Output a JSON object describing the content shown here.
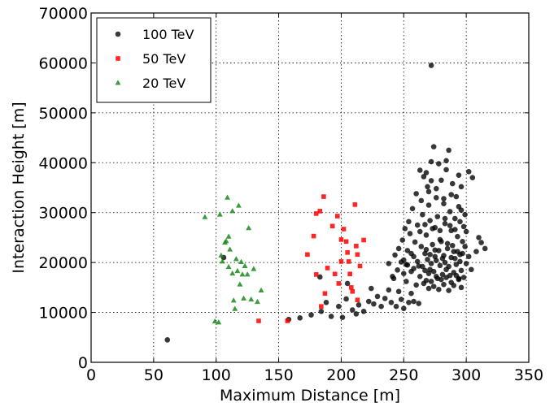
{
  "chart_data": {
    "type": "scatter",
    "title": "",
    "xlabel": "Maximum Distance [m]",
    "ylabel": "Interaction Height [m]",
    "xlim": [
      0,
      350
    ],
    "ylim": [
      0,
      70000
    ],
    "xticks": [
      "0",
      "50",
      "100",
      "150",
      "200",
      "250",
      "300",
      "350"
    ],
    "yticks": [
      "0",
      "10000",
      "20000",
      "30000",
      "40000",
      "50000",
      "60000",
      "70000"
    ],
    "grid": true,
    "legend_position": "top-left",
    "series": [
      {
        "name": "100 TeV",
        "marker": "circle",
        "color": "#000000",
        "points": [
          [
            61,
            4500
          ],
          [
            106,
            21000
          ],
          [
            158,
            8600
          ],
          [
            167,
            8900
          ],
          [
            176,
            9500
          ],
          [
            183,
            17100
          ],
          [
            184,
            10200
          ],
          [
            188,
            12000
          ],
          [
            192,
            9200
          ],
          [
            198,
            11200
          ],
          [
            201,
            9000
          ],
          [
            204,
            12700
          ],
          [
            205,
            15800
          ],
          [
            209,
            10500
          ],
          [
            212,
            9700
          ],
          [
            214,
            11500
          ],
          [
            218,
            10200
          ],
          [
            222,
            12200
          ],
          [
            224,
            14800
          ],
          [
            226,
            11700
          ],
          [
            229,
            13200
          ],
          [
            232,
            11200
          ],
          [
            235,
            12800
          ],
          [
            238,
            14500
          ],
          [
            240,
            12000
          ],
          [
            242,
            16800
          ],
          [
            244,
            11200
          ],
          [
            246,
            14200
          ],
          [
            248,
            12600
          ],
          [
            250,
            10800
          ],
          [
            252,
            16200
          ],
          [
            254,
            12000
          ],
          [
            256,
            13800
          ],
          [
            258,
            12200
          ],
          [
            260,
            15500
          ],
          [
            262,
            11800
          ],
          [
            238,
            19800
          ],
          [
            241,
            17200
          ],
          [
            243,
            21500
          ],
          [
            245,
            18500
          ],
          [
            246,
            22800
          ],
          [
            248,
            20100
          ],
          [
            249,
            24500
          ],
          [
            250,
            17800
          ],
          [
            251,
            26800
          ],
          [
            252,
            19600
          ],
          [
            253,
            22400
          ],
          [
            254,
            28200
          ],
          [
            255,
            25800
          ],
          [
            256,
            18200
          ],
          [
            257,
            30800
          ],
          [
            258,
            21200
          ],
          [
            259,
            24100
          ],
          [
            260,
            33800
          ],
          [
            261,
            27500
          ],
          [
            262,
            19300
          ],
          [
            263,
            38500
          ],
          [
            264,
            23200
          ],
          [
            265,
            29600
          ],
          [
            266,
            37200
          ],
          [
            267,
            21800
          ],
          [
            268,
            25500
          ],
          [
            269,
            35200
          ],
          [
            270,
            31500
          ],
          [
            271,
            18600
          ],
          [
            272,
            40200
          ],
          [
            273,
            26800
          ],
          [
            274,
            43200
          ],
          [
            275,
            22500
          ],
          [
            276,
            34800
          ],
          [
            277,
            29200
          ],
          [
            278,
            39800
          ],
          [
            279,
            24600
          ],
          [
            280,
            36500
          ],
          [
            281,
            20800
          ],
          [
            282,
            32800
          ],
          [
            283,
            27800
          ],
          [
            284,
            38600
          ],
          [
            285,
            23800
          ],
          [
            286,
            42500
          ],
          [
            287,
            30200
          ],
          [
            288,
            26400
          ],
          [
            289,
            35800
          ],
          [
            290,
            22200
          ],
          [
            291,
            28800
          ],
          [
            292,
            33200
          ],
          [
            293,
            25200
          ],
          [
            294,
            37500
          ],
          [
            295,
            21600
          ],
          [
            296,
            30500
          ],
          [
            297,
            24200
          ],
          [
            298,
            27200
          ],
          [
            299,
            23200
          ],
          [
            300,
            26200
          ],
          [
            302,
            38200
          ],
          [
            305,
            37000
          ],
          [
            308,
            22200
          ],
          [
            310,
            25000
          ],
          [
            312,
            24000
          ],
          [
            315,
            22800
          ],
          [
            250,
            20500
          ],
          [
            253,
            19500
          ],
          [
            256,
            21800
          ],
          [
            258,
            18800
          ],
          [
            261,
            20200
          ],
          [
            263,
            17200
          ],
          [
            265,
            19200
          ],
          [
            267,
            18400
          ],
          [
            268,
            22600
          ],
          [
            269,
            20600
          ],
          [
            270,
            17800
          ],
          [
            271,
            21600
          ],
          [
            272,
            19800
          ],
          [
            273,
            23600
          ],
          [
            274,
            18200
          ],
          [
            275,
            21200
          ],
          [
            276,
            20400
          ],
          [
            277,
            16800
          ],
          [
            278,
            22400
          ],
          [
            279,
            19400
          ],
          [
            280,
            24200
          ],
          [
            281,
            17600
          ],
          [
            282,
            21400
          ],
          [
            283,
            20000
          ],
          [
            284,
            18600
          ],
          [
            285,
            22800
          ],
          [
            286,
            19200
          ],
          [
            287,
            17400
          ],
          [
            288,
            21000
          ],
          [
            289,
            23400
          ],
          [
            290,
            18000
          ],
          [
            291,
            20800
          ],
          [
            292,
            19600
          ],
          [
            293,
            22200
          ],
          [
            294,
            16600
          ],
          [
            295,
            20200
          ],
          [
            296,
            18400
          ],
          [
            297,
            21800
          ],
          [
            298,
            17000
          ],
          [
            300,
            19800
          ],
          [
            302,
            21200
          ],
          [
            304,
            18600
          ],
          [
            266,
            15800
          ],
          [
            268,
            16400
          ],
          [
            270,
            14800
          ],
          [
            272,
            16200
          ],
          [
            274,
            15200
          ],
          [
            276,
            17200
          ],
          [
            278,
            14600
          ],
          [
            280,
            16600
          ],
          [
            282,
            15600
          ],
          [
            284,
            17000
          ],
          [
            286,
            14400
          ],
          [
            288,
            16000
          ],
          [
            290,
            15400
          ],
          [
            292,
            17400
          ],
          [
            294,
            16800
          ],
          [
            296,
            15000
          ],
          [
            263,
            26200
          ],
          [
            267,
            27600
          ],
          [
            271,
            28400
          ],
          [
            275,
            27000
          ],
          [
            279,
            26400
          ],
          [
            283,
            28800
          ],
          [
            287,
            27400
          ],
          [
            291,
            26600
          ],
          [
            295,
            28200
          ],
          [
            299,
            29600
          ],
          [
            264,
            32400
          ],
          [
            270,
            34200
          ],
          [
            276,
            33000
          ],
          [
            282,
            31800
          ],
          [
            288,
            33600
          ],
          [
            294,
            31200
          ],
          [
            284,
            40400
          ],
          [
            272,
            36400
          ],
          [
            296,
            35200
          ],
          [
            268,
            38000
          ],
          [
            272,
            59500
          ]
        ]
      },
      {
        "name": "50 TeV",
        "marker": "square",
        "color": "#ff0000",
        "points": [
          [
            134,
            8300
          ],
          [
            157,
            8300
          ],
          [
            173,
            21600
          ],
          [
            178,
            25300
          ],
          [
            180,
            17600
          ],
          [
            180,
            29800
          ],
          [
            183,
            30300
          ],
          [
            186,
            33200
          ],
          [
            184,
            11200
          ],
          [
            187,
            13800
          ],
          [
            189,
            18900
          ],
          [
            193,
            27300
          ],
          [
            195,
            17700
          ],
          [
            197,
            29300
          ],
          [
            198,
            15800
          ],
          [
            200,
            20200
          ],
          [
            200,
            24600
          ],
          [
            202,
            26700
          ],
          [
            204,
            24200
          ],
          [
            205,
            22000
          ],
          [
            206,
            20200
          ],
          [
            207,
            17700
          ],
          [
            208,
            15000
          ],
          [
            209,
            14200
          ],
          [
            211,
            31600
          ],
          [
            212,
            23300
          ],
          [
            213,
            12500
          ],
          [
            213,
            21600
          ],
          [
            215,
            19300
          ],
          [
            218,
            24500
          ]
        ]
      },
      {
        "name": "20 TeV",
        "marker": "triangle",
        "color": "#1a8a1a",
        "points": [
          [
            91,
            29100
          ],
          [
            99,
            8200
          ],
          [
            102,
            8000
          ],
          [
            103,
            29600
          ],
          [
            104,
            21400
          ],
          [
            105,
            20200
          ],
          [
            107,
            24000
          ],
          [
            108,
            24300
          ],
          [
            109,
            33000
          ],
          [
            110,
            19100
          ],
          [
            110,
            25200
          ],
          [
            111,
            22600
          ],
          [
            113,
            17800
          ],
          [
            113,
            30300
          ],
          [
            114,
            12400
          ],
          [
            115,
            10700
          ],
          [
            116,
            20700
          ],
          [
            117,
            18300
          ],
          [
            118,
            31400
          ],
          [
            119,
            15600
          ],
          [
            120,
            20100
          ],
          [
            121,
            17600
          ],
          [
            122,
            12800
          ],
          [
            123,
            19300
          ],
          [
            125,
            17600
          ],
          [
            126,
            26900
          ],
          [
            128,
            12600
          ],
          [
            130,
            18700
          ],
          [
            133,
            12100
          ],
          [
            136,
            14400
          ]
        ]
      }
    ]
  }
}
